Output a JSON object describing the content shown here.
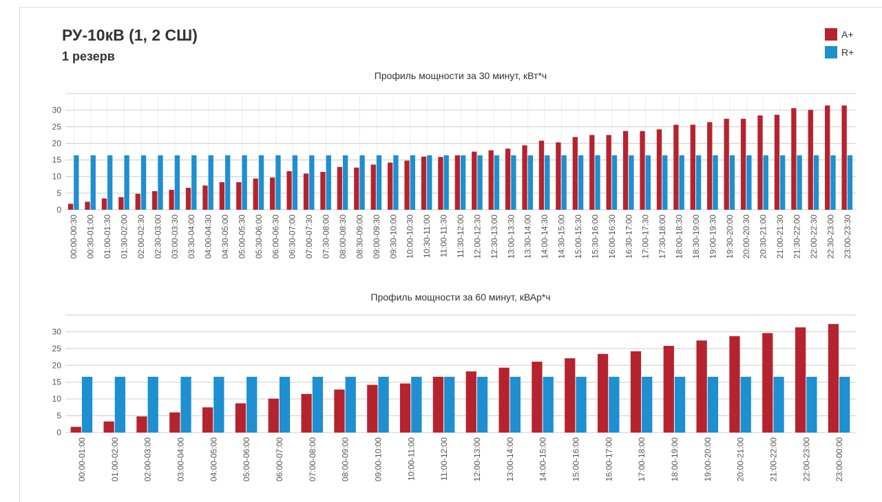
{
  "header": {
    "title": "РУ-10кВ (1, 2 СШ)",
    "subtitle": "1 резерв"
  },
  "chart_data": [
    {
      "type": "bar",
      "title": "Профиль мощности за 30 минут, кВт*ч",
      "categories": [
        "00:00-00:30",
        "00:30-01:00",
        "01:00-01:30",
        "01:30-02:00",
        "02:00-02:30",
        "02:30-03:00",
        "03:00-03:30",
        "03:30-04:00",
        "04:00-04:30",
        "04:30-05:00",
        "05:00-05:30",
        "05:30-06:00",
        "06:00-06:30",
        "06:30-07:00",
        "07:00-07:30",
        "07:30-08:00",
        "08:00-08:30",
        "08:30-09:00",
        "09:00-09:30",
        "09:30-10:00",
        "10:00-10:30",
        "10:30-11:00",
        "11:00-11:30",
        "11:30-12:00",
        "12:00-12:30",
        "12:30-13:00",
        "13:00-13:30",
        "13:30-14:00",
        "14:00-14:30",
        "14:30-15:00",
        "15:00-15:30",
        "15:30-16:00",
        "16:00-16:30",
        "16:30-17:00",
        "17:00-17:30",
        "17:30-18:00",
        "18:00-18:30",
        "18:30-19:00",
        "19:00-19:30",
        "19:30-20:00",
        "20:00-20:30",
        "20:30-21:00",
        "21:00-21:30",
        "21:30-22:00",
        "22:00-22:30",
        "22:30-23:00",
        "23:00-23:30"
      ],
      "series": [
        {
          "name": "A+",
          "color": "#b5232f",
          "values": [
            1.8,
            2.4,
            3.4,
            3.8,
            4.8,
            5.6,
            6.0,
            6.6,
            7.3,
            8.3,
            8.3,
            9.4,
            9.7,
            11.6,
            10.9,
            11.4,
            12.9,
            12.7,
            13.6,
            14.2,
            14.8,
            16.0,
            15.9,
            16.4,
            17.5,
            17.9,
            18.4,
            19.4,
            20.8,
            20.3,
            21.9,
            22.5,
            22.5,
            23.7,
            23.7,
            24.2,
            25.6,
            25.6,
            26.4,
            27.4,
            27.4,
            28.4,
            28.6,
            30.6,
            30.1,
            31.4,
            31.4
          ]
        },
        {
          "name": "R+",
          "color": "#1e8fd0",
          "values": [
            16.4,
            16.4,
            16.4,
            16.4,
            16.4,
            16.4,
            16.4,
            16.4,
            16.4,
            16.4,
            16.4,
            16.4,
            16.4,
            16.4,
            16.4,
            16.4,
            16.4,
            16.4,
            16.4,
            16.4,
            16.4,
            16.4,
            16.4,
            16.4,
            16.4,
            16.4,
            16.4,
            16.4,
            16.4,
            16.4,
            16.4,
            16.4,
            16.4,
            16.4,
            16.4,
            16.4,
            16.4,
            16.4,
            16.4,
            16.4,
            16.4,
            16.4,
            16.4,
            16.4,
            16.4,
            16.4,
            16.4
          ]
        }
      ],
      "ylim": [
        0,
        35
      ],
      "yticks": [
        0,
        5,
        10,
        15,
        20,
        25,
        30
      ],
      "grid": true,
      "xgrid": true,
      "legend": "top-right"
    },
    {
      "type": "bar",
      "title": "Профиль мощности за 60 минут, кВАр*ч",
      "categories": [
        "00:00-01:00",
        "01:00-02:00",
        "02:00-03:00",
        "03:00-04:00",
        "04:00-05:00",
        "05:00-06:00",
        "06:00-07:00",
        "07:00-08:00",
        "08:00-09:00",
        "09:00-10:00",
        "10:00-11:00",
        "11:00-12:00",
        "12:00-13:00",
        "13:00-14:00",
        "14:00-15:00",
        "15:00-16:00",
        "16:00-17:00",
        "17:00-18:00",
        "18:00-19:00",
        "19:00-20:00",
        "20:00-21:00",
        "21:00-22:00",
        "22:00-23:00",
        "23:00-00:00"
      ],
      "series": [
        {
          "color": "#b5232f",
          "values": [
            1.7,
            3.3,
            4.8,
            6.0,
            7.5,
            8.7,
            10.1,
            11.5,
            12.8,
            14.2,
            14.6,
            16.6,
            18.2,
            19.3,
            21.1,
            22.1,
            23.4,
            24.2,
            25.8,
            27.4,
            28.7,
            29.6,
            31.3,
            32.3
          ]
        },
        {
          "color": "#1e8fd0",
          "values": [
            16.6,
            16.6,
            16.6,
            16.6,
            16.6,
            16.6,
            16.6,
            16.6,
            16.6,
            16.6,
            16.6,
            16.6,
            16.6,
            16.6,
            16.6,
            16.6,
            16.6,
            16.6,
            16.6,
            16.6,
            16.6,
            16.6,
            16.6,
            16.6
          ]
        }
      ],
      "ylim": [
        0,
        35
      ],
      "yticks": [
        0,
        5,
        10,
        15,
        20,
        25,
        30
      ],
      "grid": true,
      "xgrid": false
    }
  ]
}
